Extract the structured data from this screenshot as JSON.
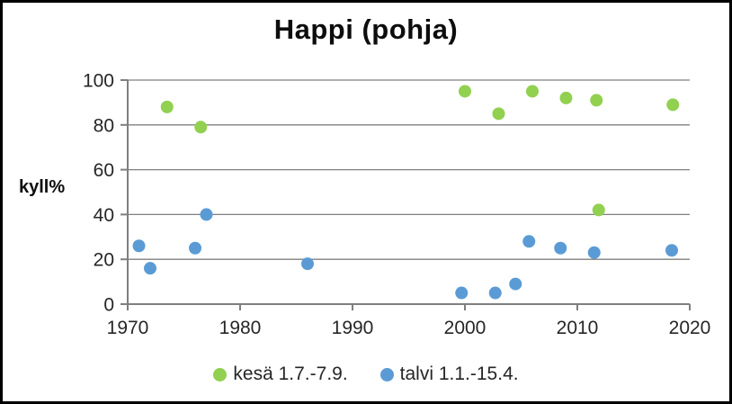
{
  "chart_data": {
    "type": "scatter",
    "title": "Happi (pohja)",
    "ylabel": "kyll%",
    "xlabel": "",
    "xlim": [
      1970,
      2020
    ],
    "ylim": [
      0,
      100
    ],
    "xticks": [
      1970,
      1980,
      1990,
      2000,
      2010,
      2020
    ],
    "yticks": [
      0,
      20,
      40,
      60,
      80,
      100
    ],
    "grid": "horizontal",
    "legend_position": "bottom",
    "colors": {
      "kesa": "#92d050",
      "talvi": "#5b9bd5",
      "gridline": "#808080",
      "axis": "#7f7f7f",
      "text": "#262626"
    },
    "series": [
      {
        "name": "kesä 1.7.-7.9.",
        "color": "#92d050",
        "points": [
          [
            1973.5,
            88
          ],
          [
            1976.5,
            79
          ],
          [
            2000,
            95
          ],
          [
            2003,
            85
          ],
          [
            2006,
            95
          ],
          [
            2009,
            92
          ],
          [
            2011.7,
            91
          ],
          [
            2011.9,
            42
          ],
          [
            2018.5,
            89
          ]
        ]
      },
      {
        "name": "talvi 1.1.-15.4.",
        "color": "#5b9bd5",
        "points": [
          [
            1971,
            26
          ],
          [
            1972,
            16
          ],
          [
            1976,
            25
          ],
          [
            1977,
            40
          ],
          [
            1986,
            18
          ],
          [
            1999.7,
            5
          ],
          [
            2002.7,
            5
          ],
          [
            2004.5,
            9
          ],
          [
            2005.7,
            28
          ],
          [
            2008.5,
            25
          ],
          [
            2011.5,
            23
          ],
          [
            2018.4,
            24
          ]
        ]
      }
    ]
  }
}
